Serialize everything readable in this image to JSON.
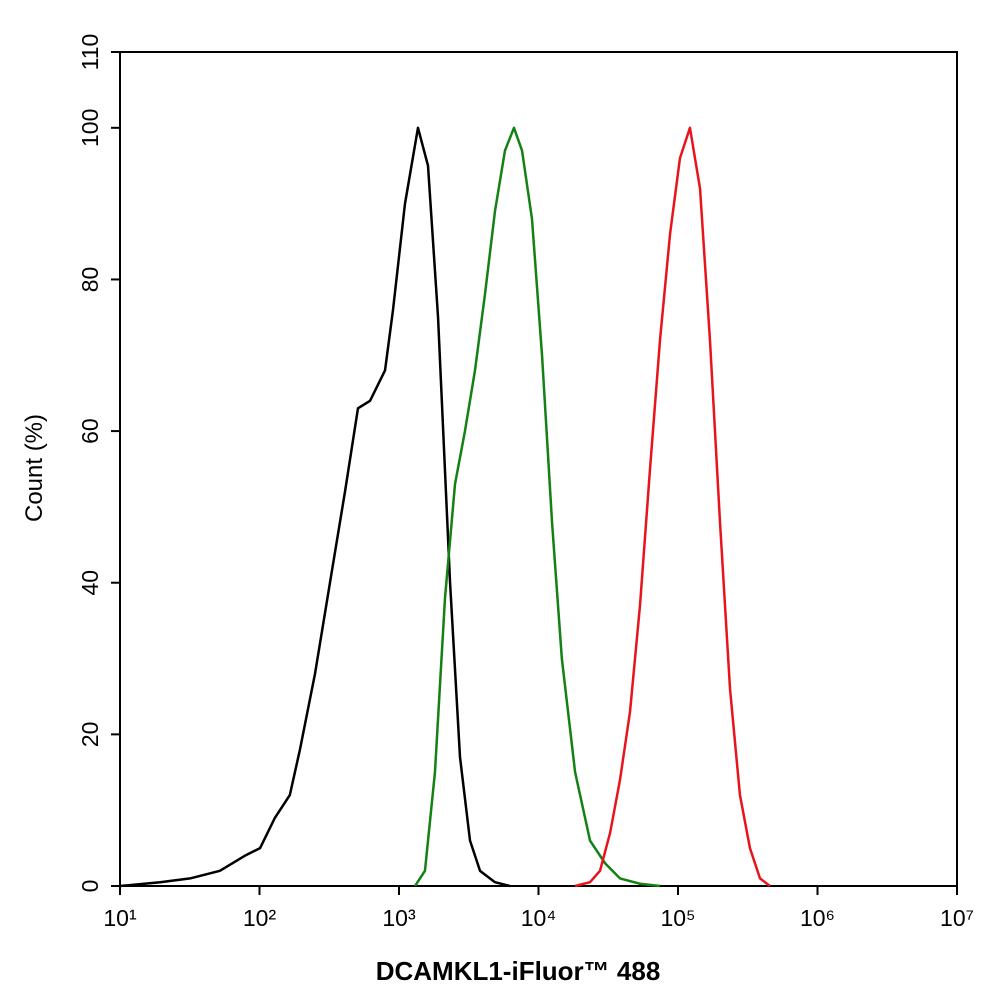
{
  "chart_data": {
    "type": "line",
    "x_label": "DCAMKL1-iFluor™ 488",
    "y_label": "Count  (%)",
    "log_x": true,
    "xlim": [
      10,
      10000000
    ],
    "xticks": [
      {
        "value": 10,
        "label": "10¹"
      },
      {
        "value": 100,
        "label": "10²"
      },
      {
        "value": 1000,
        "label": "10³"
      },
      {
        "value": 10000,
        "label": "10⁴"
      },
      {
        "value": 100000,
        "label": "10⁵"
      },
      {
        "value": 1000000,
        "label": "10⁶"
      },
      {
        "value": 10000000,
        "label": "10⁷"
      }
    ],
    "ylim": [
      0,
      110
    ],
    "yticks": [
      0,
      20,
      40,
      60,
      80,
      100,
      110
    ],
    "series": [
      {
        "color": "#000000",
        "x": [
          10,
          19.4,
          31.8,
          52,
          78.7,
          101,
          129,
          165,
          195,
          250,
          320,
          410,
          508,
          620,
          794,
          906,
          1104,
          1368,
          1614,
          1905,
          2323,
          2737,
          3228,
          3810,
          4875,
          6250
        ],
        "values": [
          0,
          0.5,
          1,
          2,
          4,
          5,
          9,
          12,
          18,
          28,
          40,
          52,
          63,
          64,
          68,
          76,
          90,
          100,
          95,
          75,
          40,
          17,
          6,
          2,
          0.5,
          0
        ]
      },
      {
        "color": "#138113",
        "x": [
          1303,
          1535,
          1810,
          2137,
          2520,
          2970,
          3505,
          4130,
          4875,
          5750,
          6670,
          7620,
          8980,
          10600,
          12500,
          14700,
          18300,
          23400,
          30000,
          38400,
          53400,
          74300
        ],
        "values": [
          0,
          2,
          15,
          38,
          53,
          60,
          68,
          78,
          89,
          97,
          100,
          97,
          88,
          70,
          48,
          30,
          15,
          6,
          3,
          1,
          0.3,
          0
        ]
      },
      {
        "color": "#e8141b",
        "x": [
          18300,
          23400,
          27600,
          32600,
          38400,
          45300,
          53400,
          63000,
          74300,
          87700,
          103300,
          121800,
          143800,
          169500,
          200000,
          236000,
          278000,
          328000,
          387000,
          456000
        ],
        "values": [
          0,
          0.5,
          2,
          7,
          14,
          23,
          37,
          55,
          72,
          86,
          96,
          100,
          92,
          72,
          48,
          26,
          12,
          5,
          1,
          0
        ]
      }
    ]
  }
}
